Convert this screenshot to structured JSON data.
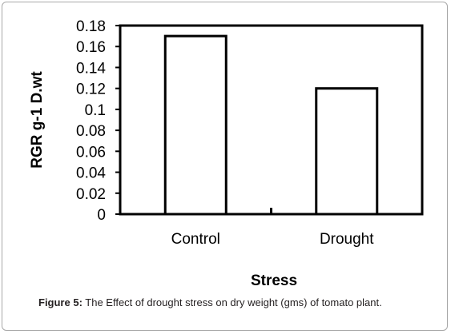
{
  "chart_data": {
    "type": "bar",
    "title": "",
    "xlabel": "Stress",
    "ylabel": "RGR g-1 D.wt",
    "categories": [
      "Control",
      "Drought"
    ],
    "values": [
      0.17,
      0.12
    ],
    "ylim": [
      0,
      0.18
    ],
    "yticks": [
      "0",
      "0.02",
      "0.04",
      "0.06",
      "0.08",
      "0.1",
      "0.12",
      "0.14",
      "0.16",
      "0.18"
    ],
    "grid": false,
    "legend": "none"
  },
  "caption": {
    "label": "Figure 5:",
    "text": " The Effect of drought stress on dry weight (gms) of tomato plant."
  }
}
